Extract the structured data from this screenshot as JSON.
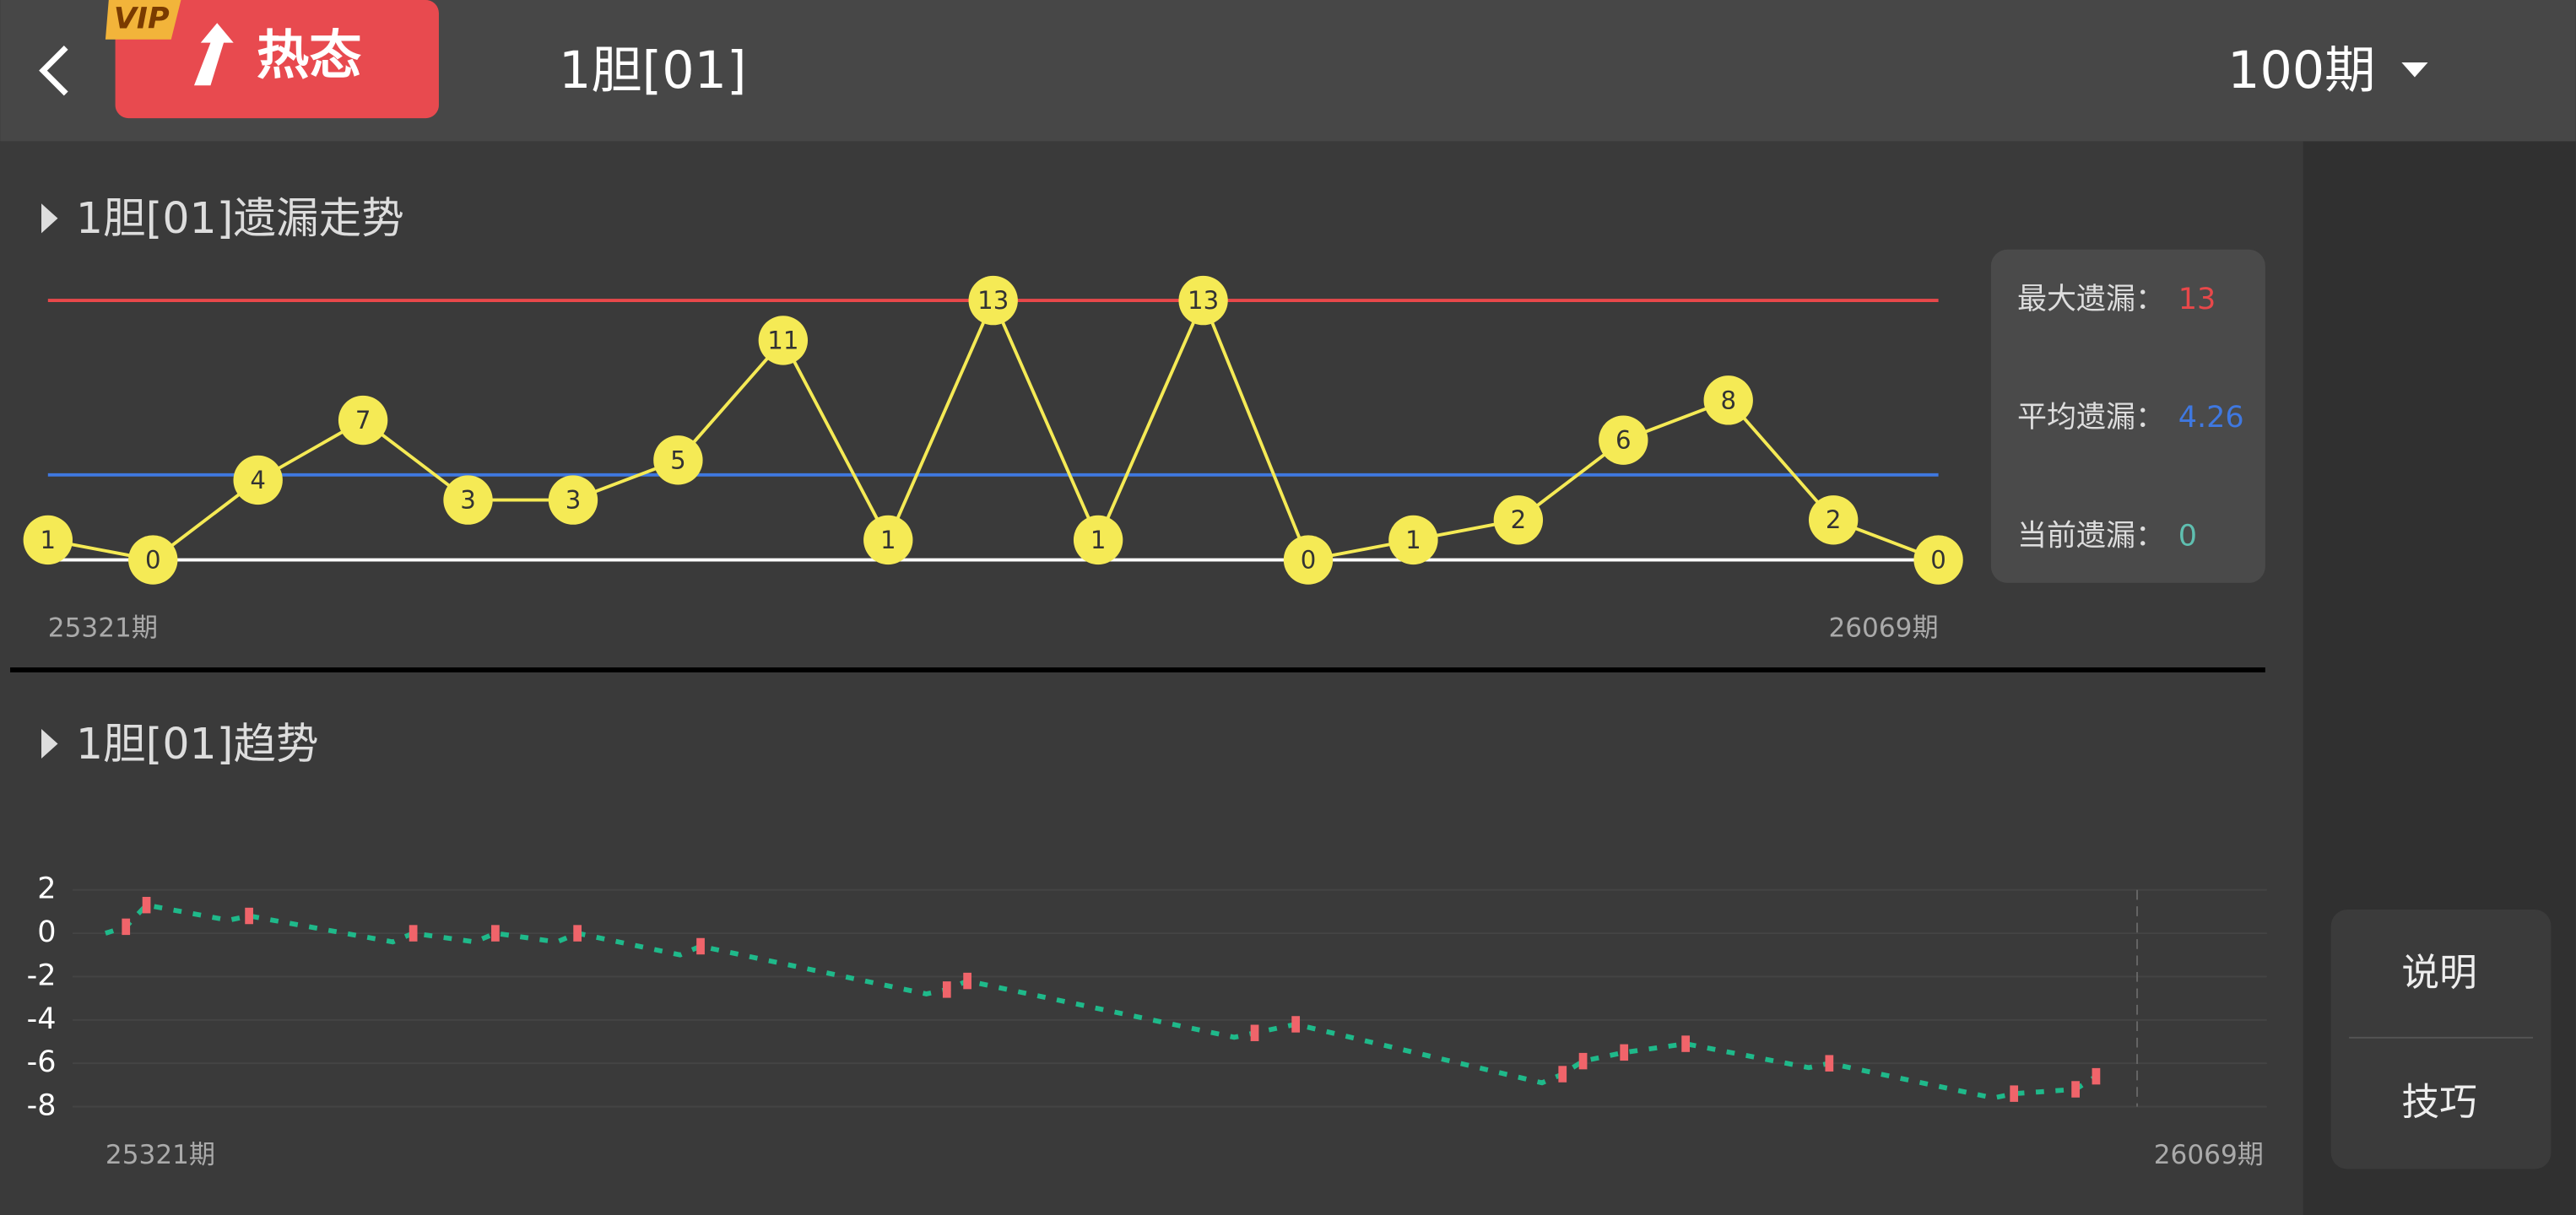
{
  "header": {
    "badge": "VIP",
    "mode": "热态",
    "title": "1胆[01]",
    "period": "100期"
  },
  "omission_chart": {
    "type": "line",
    "title": "1胆[01]遗漏走势",
    "values": [
      1,
      0,
      4,
      7,
      3,
      3,
      5,
      11,
      1,
      13,
      1,
      13,
      0,
      1,
      2,
      6,
      8,
      2,
      0
    ],
    "ylim": [
      0,
      13
    ],
    "color": "#f5ea55",
    "x_labels": [
      "25321期",
      "26069期"
    ],
    "stats": [
      {
        "label": "最大遗漏：",
        "value": 13,
        "color": "#e8484a"
      },
      {
        "label": "平均遗漏：",
        "value": 4.26,
        "color": "#3f78e0"
      },
      {
        "label": "当前遗漏：",
        "value": 0,
        "color": "#5fbfb0"
      }
    ]
  },
  "trend_chart": {
    "type": "trend",
    "title": "1胆[01]趋势",
    "x": [
      0,
      1,
      2,
      6,
      7,
      14,
      15,
      18,
      19,
      22,
      23,
      28,
      29,
      40,
      41,
      42,
      55,
      56,
      58,
      70,
      71,
      72,
      74,
      77,
      83,
      84,
      92,
      93,
      96,
      97
    ],
    "values": [
      0,
      0.3,
      1.3,
      0.6,
      0.8,
      -0.4,
      0,
      -0.4,
      0,
      -0.4,
      0,
      -1.0,
      -0.6,
      -2.8,
      -2.6,
      -2.2,
      -4.8,
      -4.6,
      -4.2,
      -6.9,
      -6.5,
      -5.9,
      -5.5,
      -5.1,
      -6.2,
      -6.0,
      -7.6,
      -7.4,
      -7.2,
      -6.6
    ],
    "hits": {
      "x": [
        1,
        2,
        7,
        15,
        19,
        23,
        29,
        41,
        42,
        56,
        58,
        71,
        72,
        74,
        77,
        84,
        93,
        96,
        97
      ],
      "values": [
        0.3,
        1.3,
        0.8,
        0,
        0,
        0,
        -0.6,
        -2.6,
        -2.2,
        -4.6,
        -4.2,
        -6.5,
        -5.9,
        -5.5,
        -5.1,
        -6.0,
        -7.4,
        -7.2,
        -6.6
      ]
    },
    "xlim": [
      0,
      99
    ],
    "ylim": [
      -8,
      2
    ],
    "yticks": [
      2,
      0,
      -2,
      -4,
      -6,
      -8
    ],
    "line_color": "#1fb98a",
    "hit_color": "#f0646a",
    "x_labels": [
      "25321期",
      "26069期"
    ]
  },
  "buttons": [
    "说明",
    "技巧"
  ]
}
